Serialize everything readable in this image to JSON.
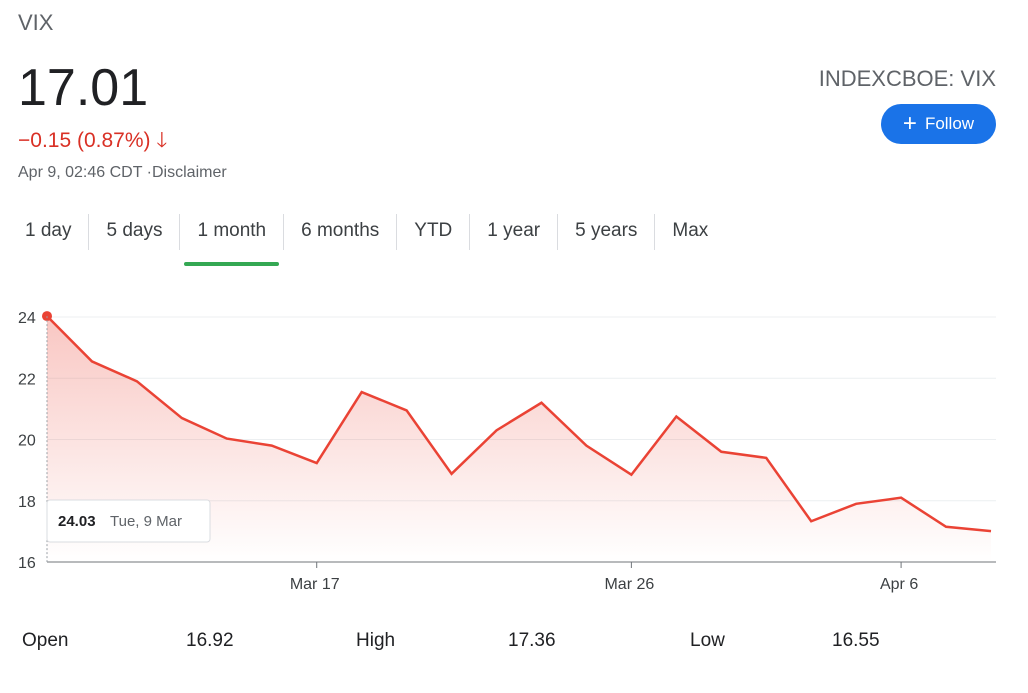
{
  "header": {
    "name": "VIX",
    "price": "17.01",
    "change": "−0.15 (0.87%)",
    "change_icon": "arrow-down-icon",
    "timestamp": "Apr 9, 02:46 CDT",
    "disclaimer": "·Disclaimer",
    "ticker": "INDEXCBOE: VIX",
    "follow_label": "Follow"
  },
  "tabs": [
    {
      "label": "1 day"
    },
    {
      "label": "5 days"
    },
    {
      "label": "1 month",
      "active": true
    },
    {
      "label": "6 months"
    },
    {
      "label": "YTD"
    },
    {
      "label": "1 year"
    },
    {
      "label": "5 years"
    },
    {
      "label": "Max"
    }
  ],
  "colors": {
    "line": "#ea4335",
    "negative": "#d93025",
    "accent": "#1a73e8",
    "active_tab": "#34a853"
  },
  "tooltip": {
    "value": "24.03",
    "date": "Tue, 9 Mar"
  },
  "chart_data": {
    "type": "area",
    "ylim": [
      16,
      24
    ],
    "yticks": [
      16,
      18,
      20,
      22,
      24
    ],
    "xticks": [
      {
        "label": "Mar 17",
        "index": 6
      },
      {
        "label": "Mar 26",
        "index": 13
      },
      {
        "label": "Apr 6",
        "index": 19
      }
    ],
    "values": [
      24.03,
      22.55,
      21.9,
      20.7,
      20.03,
      19.8,
      19.23,
      21.55,
      20.95,
      18.88,
      20.3,
      21.2,
      19.8,
      18.85,
      20.75,
      19.6,
      19.4,
      17.33,
      17.9,
      18.1,
      17.15,
      17.01
    ],
    "grid": true
  },
  "stats": [
    {
      "label": "Open",
      "value": "16.92"
    },
    {
      "label": "High",
      "value": "17.36"
    },
    {
      "label": "Low",
      "value": "16.55"
    }
  ]
}
